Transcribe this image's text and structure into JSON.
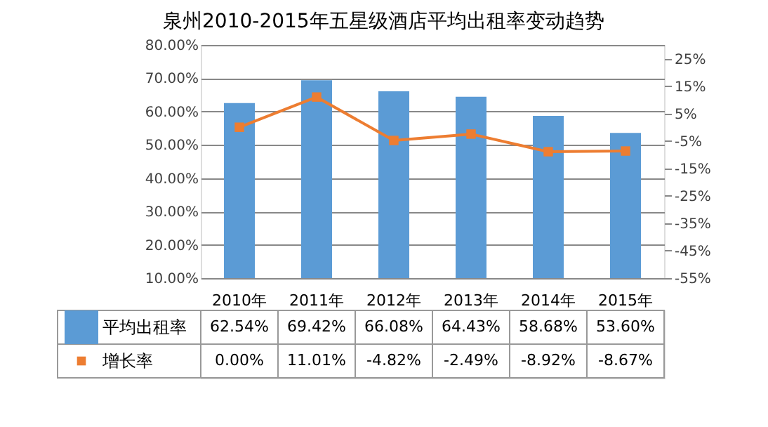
{
  "chart_data": {
    "type": "bar",
    "title": "泉州2010-2015年五星级酒店平均出租率变动趋势",
    "categories": [
      "2010年",
      "2011年",
      "2012年",
      "2013年",
      "2014年",
      "2015年"
    ],
    "series": [
      {
        "name": "平均出租率",
        "color": "#5b9bd5",
        "values": [
          62.54,
          69.42,
          66.08,
          64.43,
          58.68,
          53.6
        ],
        "value_labels": [
          "62.54%",
          "69.42%",
          "66.08%",
          "64.43%",
          "58.68%",
          "53.60%"
        ]
      },
      {
        "name": "增长率",
        "type": "line",
        "axis": "y2",
        "color": "#ed7d31",
        "marker": "square",
        "values": [
          0.0,
          11.01,
          -4.82,
          -2.49,
          -8.92,
          -8.67
        ],
        "value_labels": [
          "0.00%",
          "11.01%",
          "-4.82%",
          "-2.49%",
          "-8.92%",
          "-8.67%"
        ]
      }
    ],
    "ylim": [
      10,
      80
    ],
    "yticks": [
      {
        "value": 10,
        "label": "10.00%"
      },
      {
        "value": 20,
        "label": "20.00%"
      },
      {
        "value": 30,
        "label": "30.00%"
      },
      {
        "value": 40,
        "label": "40.00%"
      },
      {
        "value": 50,
        "label": "50.00%"
      },
      {
        "value": 60,
        "label": "60.00%"
      },
      {
        "value": 70,
        "label": "70.00%"
      },
      {
        "value": 80,
        "label": "80.00%"
      }
    ],
    "y2lim": [
      -55,
      30
    ],
    "y2ticks": [
      {
        "value": -55,
        "label": "-55%"
      },
      {
        "value": -45,
        "label": "-45%"
      },
      {
        "value": -35,
        "label": "-35%"
      },
      {
        "value": -25,
        "label": "-25%"
      },
      {
        "value": -15,
        "label": "-15%"
      },
      {
        "value": -5,
        "label": "-5%"
      },
      {
        "value": 5,
        "label": "5%"
      },
      {
        "value": 15,
        "label": "15%"
      },
      {
        "value": 25,
        "label": "25%"
      }
    ],
    "grid": "y",
    "legend": "bottom"
  }
}
